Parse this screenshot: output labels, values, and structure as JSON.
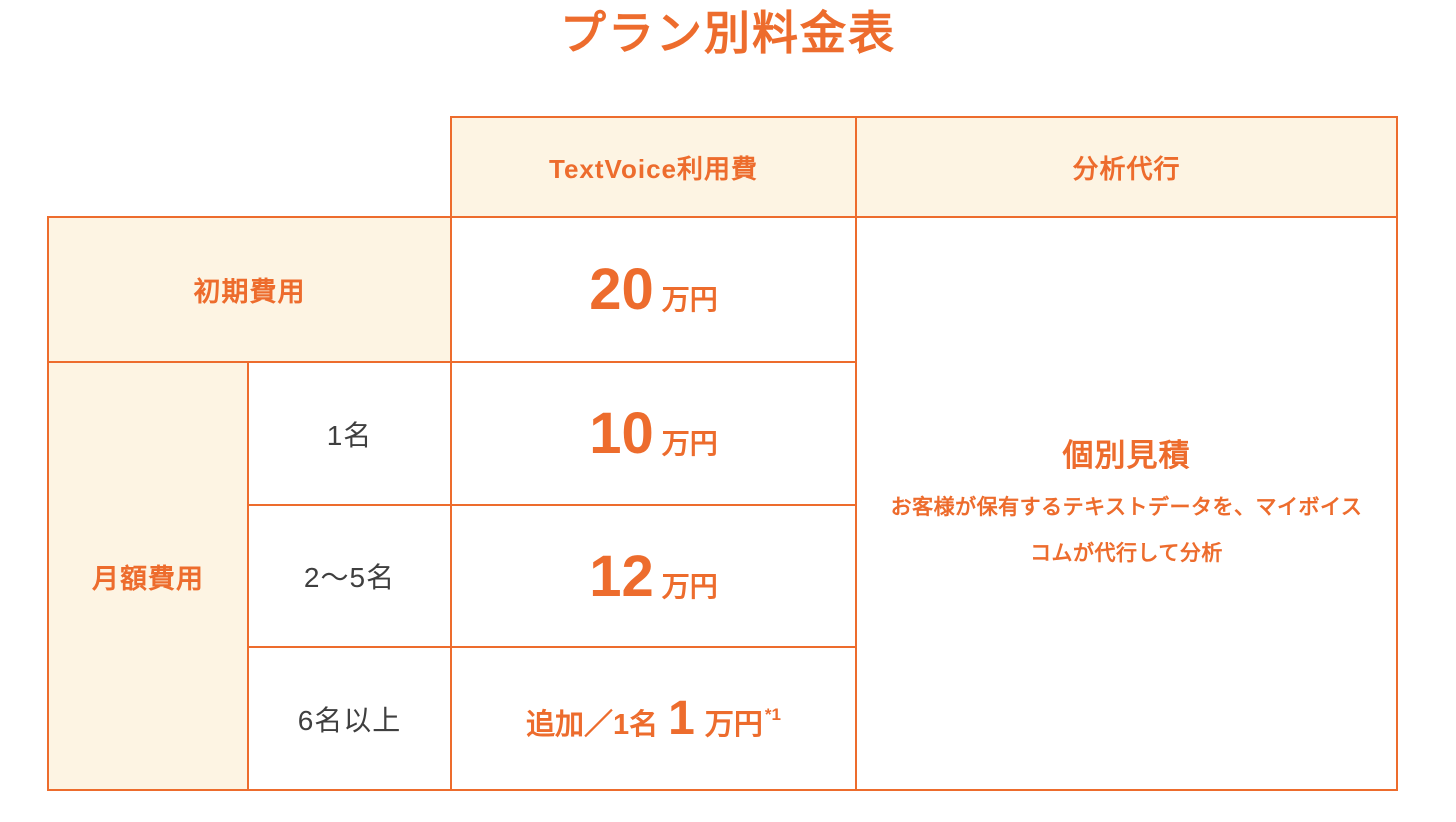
{
  "title": "プラン別料金表",
  "colors": {
    "accent_orange": "#ED6C2D",
    "header_bg_cream": "#FDF4E3",
    "tier_text_dark": "#3F3F3F",
    "cell_bg_white": "#FFFFFF"
  },
  "table": {
    "column_headers": [
      {
        "label": "TextVoice利用費"
      },
      {
        "label": "分析代行"
      }
    ],
    "initial_cost": {
      "label": "初期費用",
      "price_value": "20",
      "price_unit": "万円"
    },
    "monthly_cost": {
      "label": "月額費用",
      "tiers": [
        {
          "label": "1名",
          "price_value": "10",
          "price_unit": "万円"
        },
        {
          "label": "2〜5名",
          "price_value": "12",
          "price_unit": "万円"
        },
        {
          "label": "6名以上",
          "price_prefix": "追加／1名",
          "price_value": "1",
          "price_unit": "万円",
          "price_note": "*1"
        }
      ]
    },
    "analysis_service": {
      "title": "個別見積",
      "description": "お客様が保有するテキストデータを、マイボイスコムが代行して分析"
    }
  }
}
